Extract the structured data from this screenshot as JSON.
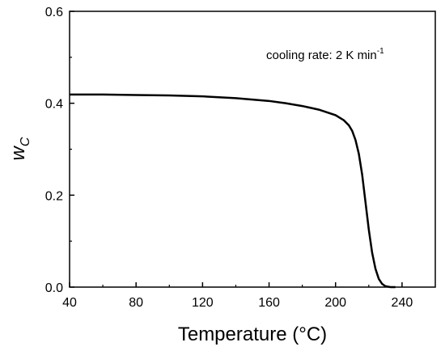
{
  "chart_data": {
    "type": "line",
    "title": "",
    "xlabel": "Temperature (°C)",
    "ylabel_main": "w",
    "ylabel_sub": "C",
    "xlim": [
      40,
      260
    ],
    "ylim": [
      0.0,
      0.6
    ],
    "x_ticks": [
      40,
      80,
      120,
      160,
      200,
      240
    ],
    "x_tick_labels": [
      "40",
      "80",
      "120",
      "160",
      "200",
      "240"
    ],
    "y_ticks": [
      0.0,
      0.2,
      0.4,
      0.6
    ],
    "y_tick_labels": [
      "0.0",
      "0.2",
      "0.4",
      "0.6"
    ],
    "grid": false,
    "legend": "none",
    "annotation": {
      "text": "cooling rate: 2 K min",
      "superscript": "-1",
      "placement": "top-right"
    },
    "line_color": "#000000",
    "series": [
      {
        "x": [
          40,
          60,
          80,
          100,
          120,
          140,
          160,
          170,
          180,
          190,
          200,
          205,
          208,
          210,
          212,
          214,
          216,
          218,
          220,
          222,
          224,
          226,
          228,
          230,
          233,
          236
        ],
        "y": [
          0.419,
          0.419,
          0.418,
          0.417,
          0.415,
          0.411,
          0.405,
          0.4,
          0.394,
          0.386,
          0.374,
          0.363,
          0.352,
          0.34,
          0.32,
          0.29,
          0.245,
          0.185,
          0.125,
          0.075,
          0.04,
          0.018,
          0.007,
          0.002,
          0.0,
          0.0
        ]
      }
    ]
  }
}
